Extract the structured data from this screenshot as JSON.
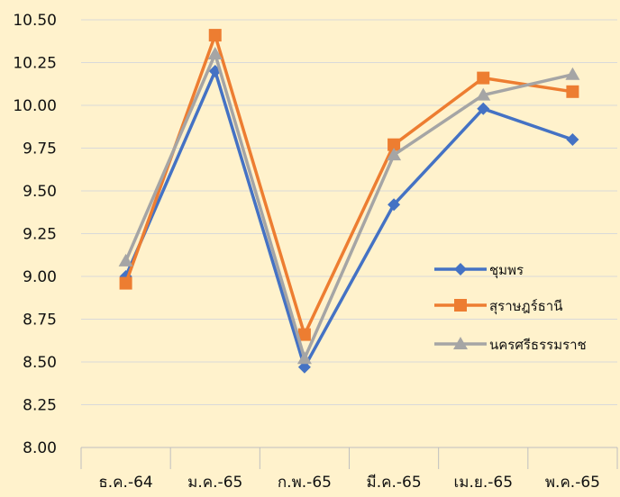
{
  "chart_data": {
    "type": "line",
    "title": "",
    "xlabel": "",
    "ylabel": "",
    "categories": [
      "ธ.ค.-64",
      "ม.ค.-65",
      "ก.พ.-65",
      "มี.ค.-65",
      "เม.ย.-65",
      "พ.ค.-65"
    ],
    "ylim": [
      8.0,
      10.5
    ],
    "yticks": [
      "8.00",
      "8.25",
      "8.50",
      "8.75",
      "9.00",
      "9.25",
      "9.50",
      "9.75",
      "10.00",
      "10.25",
      "10.50"
    ],
    "grid": "horizontal",
    "legend_position": "right",
    "background_color": "#fff2cc",
    "series": [
      {
        "name": "ชุมพร",
        "color": "#4472c4",
        "marker": "diamond",
        "values": [
          9.0,
          10.2,
          8.47,
          9.42,
          9.98,
          9.8
        ]
      },
      {
        "name": "สุราษฎร์ธานี",
        "color": "#ed7d31",
        "marker": "square",
        "values": [
          8.96,
          10.41,
          8.66,
          9.77,
          10.16,
          10.08
        ]
      },
      {
        "name": "นครศรีธรรมราช",
        "color": "#a5a5a5",
        "marker": "triangle",
        "values": [
          9.09,
          10.3,
          8.52,
          9.71,
          10.06,
          10.18
        ]
      }
    ]
  }
}
